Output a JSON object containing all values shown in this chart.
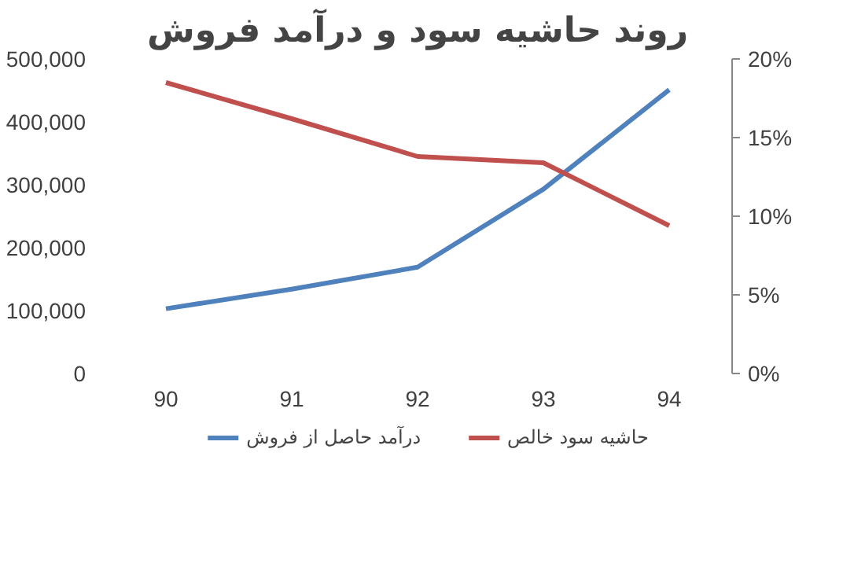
{
  "chart_data": {
    "type": "line",
    "title": "روند حاشیه سود و درآمد فروش",
    "categories": [
      "90",
      "91",
      "92",
      "93",
      "94"
    ],
    "series": [
      {
        "name": "درآمد حاصل از فروش",
        "color": "#4f81bd",
        "values": [
          103000,
          134000,
          169000,
          293000,
          451000
        ]
      },
      {
        "name": "حاشیه سود خالص",
        "color": "#c0504d",
        "axis": "y2",
        "values": [
          18.5,
          16.2,
          13.8,
          13.4,
          9.4
        ]
      }
    ],
    "ylim": [
      0,
      500000
    ],
    "yticks": [
      {
        "value": 0,
        "label": "0"
      },
      {
        "value": 100000,
        "label": "100,000"
      },
      {
        "value": 200000,
        "label": "200,000"
      },
      {
        "value": 300000,
        "label": "300,000"
      },
      {
        "value": 400000,
        "label": "400,000"
      },
      {
        "value": 500000,
        "label": "500,000"
      }
    ],
    "y2lim": [
      0,
      20
    ],
    "y2ticks": [
      {
        "value": 0,
        "label": "0%"
      },
      {
        "value": 5,
        "label": "5%"
      },
      {
        "value": 10,
        "label": "10%"
      },
      {
        "value": 15,
        "label": "15%"
      },
      {
        "value": 20,
        "label": "20%"
      }
    ],
    "grid": false,
    "legend": "bottom",
    "marker": "none",
    "line_style": "solid"
  }
}
